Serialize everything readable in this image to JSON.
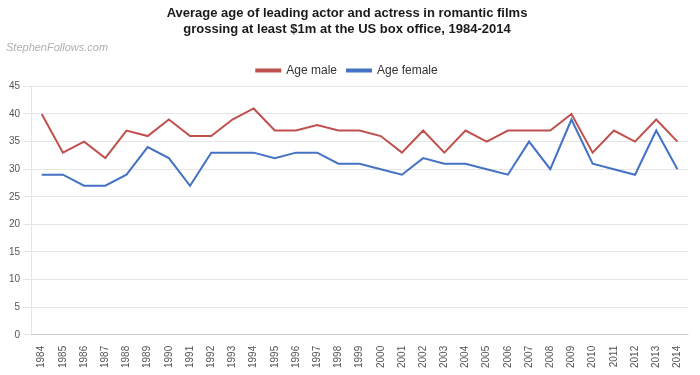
{
  "chart_data": {
    "type": "line",
    "title": [
      "Average age of leading actor and actress in romantic films",
      "grossing at least $1m at the US box office, 1984-2014"
    ],
    "annotations": [
      "StephenFollows.com"
    ],
    "x": [
      1984,
      1985,
      1986,
      1987,
      1988,
      1989,
      1990,
      1991,
      1992,
      1993,
      1994,
      1995,
      1996,
      1997,
      1998,
      1999,
      2000,
      2001,
      2002,
      2003,
      2004,
      2005,
      2006,
      2007,
      2008,
      2009,
      2010,
      2011,
      2012,
      2013,
      2014
    ],
    "series": [
      {
        "name": "Age male",
        "color": "#c0504d",
        "values": [
          40,
          33,
          35,
          32,
          37,
          36,
          39,
          36,
          36,
          39,
          41,
          37,
          37,
          38,
          37,
          37,
          36,
          33,
          37,
          33,
          37,
          35,
          37,
          37,
          37,
          40,
          33,
          37,
          35,
          39,
          35
        ]
      },
      {
        "name": "Age female",
        "color": "#4472c4",
        "values": [
          29,
          29,
          27,
          27,
          29,
          34,
          32,
          27,
          33,
          33,
          33,
          32,
          33,
          33,
          31,
          31,
          30,
          29,
          32,
          31,
          31,
          30,
          29,
          35,
          30,
          39,
          31,
          30,
          29,
          37,
          30
        ]
      }
    ],
    "xlim": [
      1983.5,
      2014.5
    ],
    "xticks": [
      1984,
      1985,
      1986,
      1987,
      1988,
      1989,
      1990,
      1991,
      1992,
      1993,
      1994,
      1995,
      1996,
      1997,
      1998,
      1999,
      2000,
      2001,
      2002,
      2003,
      2004,
      2005,
      2006,
      2007,
      2008,
      2009,
      2010,
      2011,
      2012,
      2013,
      2014
    ],
    "ylim": [
      0,
      45
    ],
    "yticks": [
      0,
      5,
      10,
      15,
      20,
      25,
      30,
      35,
      40,
      45
    ],
    "grid": "y",
    "legend": "top"
  }
}
